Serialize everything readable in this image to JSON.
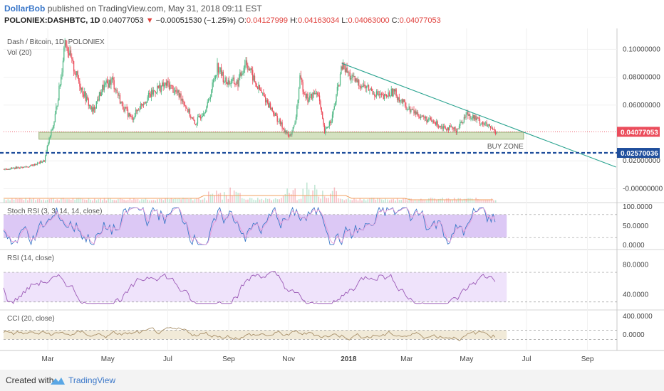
{
  "header": {
    "author": "DollarBob",
    "published_text": "published on TradingView.com, May 31, 2018 09:11 EST",
    "symbol": "POLONIEX:DASHBTC, 1D",
    "last_price": "0.04077053",
    "change_arrow": "▼",
    "change": "−0.00051530 (−1.25%)",
    "open_label": "O:",
    "open": "0.04127999",
    "high_label": "H:",
    "high": "0.04163034",
    "low_label": "L:",
    "low": "0.04063000",
    "close_label": "C:",
    "close": "0.04077053"
  },
  "colors": {
    "up": "#53b987",
    "down": "#eb4d5c",
    "trendline": "#29a38f",
    "support_line": "#1f4e9c",
    "buy_zone": "#c9d9b0",
    "rsi_band": "#efe3fb",
    "stoch_band": "#dcc8f5",
    "cci_band": "#f1ead8"
  },
  "chart_data": {
    "type": "candlestick",
    "title": "Dash / Bitcoin, 1D, POLONIEX",
    "volume_label": "Vol (20)",
    "x_ticks": [
      "Mar",
      "May",
      "Jul",
      "Sep",
      "Nov",
      "2018",
      "Mar",
      "May",
      "Jul",
      "Sep"
    ],
    "y_ticks": [
      "0.10000000",
      "0.08000000",
      "0.06000000",
      "0.02000000",
      "-0.00000000"
    ],
    "ylim": [
      -0.01,
      0.115
    ],
    "current_price_label": "0.04077053",
    "support_price_label": "0.02570036",
    "support_price": 0.0257,
    "buy_zone_label": "BUY ZONE",
    "buy_zone_range": [
      0.0355,
      0.0405
    ],
    "trendline": [
      {
        "date": "2017-12-25",
        "price": 0.09
      },
      {
        "date": "2018-09-30",
        "price": 0.0155
      }
    ],
    "price_series": [
      {
        "date": "2017-01-15",
        "price": 0.014
      },
      {
        "date": "2017-02-10",
        "price": 0.016
      },
      {
        "date": "2017-02-25",
        "price": 0.02
      },
      {
        "date": "2017-03-01",
        "price": 0.033
      },
      {
        "date": "2017-03-07",
        "price": 0.048
      },
      {
        "date": "2017-03-14",
        "price": 0.08
      },
      {
        "date": "2017-03-18",
        "price": 0.108
      },
      {
        "date": "2017-03-25",
        "price": 0.09
      },
      {
        "date": "2017-04-05",
        "price": 0.07
      },
      {
        "date": "2017-04-15",
        "price": 0.055
      },
      {
        "date": "2017-04-25",
        "price": 0.072
      },
      {
        "date": "2017-05-05",
        "price": 0.078
      },
      {
        "date": "2017-05-15",
        "price": 0.06
      },
      {
        "date": "2017-05-25",
        "price": 0.05
      },
      {
        "date": "2017-06-05",
        "price": 0.062
      },
      {
        "date": "2017-06-20",
        "price": 0.072
      },
      {
        "date": "2017-07-01",
        "price": 0.075
      },
      {
        "date": "2017-07-15",
        "price": 0.065
      },
      {
        "date": "2017-07-28",
        "price": 0.046
      },
      {
        "date": "2017-08-10",
        "price": 0.06
      },
      {
        "date": "2017-08-20",
        "price": 0.088
      },
      {
        "date": "2017-08-28",
        "price": 0.077
      },
      {
        "date": "2017-09-10",
        "price": 0.076
      },
      {
        "date": "2017-09-18",
        "price": 0.092
      },
      {
        "date": "2017-09-28",
        "price": 0.075
      },
      {
        "date": "2017-10-10",
        "price": 0.062
      },
      {
        "date": "2017-10-20",
        "price": 0.05
      },
      {
        "date": "2017-11-01",
        "price": 0.037
      },
      {
        "date": "2017-11-07",
        "price": 0.046
      },
      {
        "date": "2017-11-12",
        "price": 0.078
      },
      {
        "date": "2017-11-20",
        "price": 0.064
      },
      {
        "date": "2017-11-30",
        "price": 0.07
      },
      {
        "date": "2017-12-07",
        "price": 0.04
      },
      {
        "date": "2017-12-15",
        "price": 0.052
      },
      {
        "date": "2017-12-25",
        "price": 0.088
      },
      {
        "date": "2018-01-05",
        "price": 0.078
      },
      {
        "date": "2018-01-20",
        "price": 0.072
      },
      {
        "date": "2018-02-05",
        "price": 0.065
      },
      {
        "date": "2018-02-15",
        "price": 0.07
      },
      {
        "date": "2018-03-01",
        "price": 0.058
      },
      {
        "date": "2018-03-20",
        "price": 0.05
      },
      {
        "date": "2018-04-05",
        "price": 0.045
      },
      {
        "date": "2018-04-20",
        "price": 0.042
      },
      {
        "date": "2018-05-01",
        "price": 0.054
      },
      {
        "date": "2018-05-15",
        "price": 0.048
      },
      {
        "date": "2018-05-31",
        "price": 0.0408
      }
    ],
    "indicators": [
      {
        "name": "Stoch RSI (3, 3, 14, 14, close)",
        "ticks": [
          "100.0000",
          "50.0000",
          "0.0000"
        ],
        "ylim": [
          0,
          100
        ],
        "band": [
          20,
          80
        ]
      },
      {
        "name": "RSI (14, close)",
        "ticks": [
          "80.0000",
          "40.0000"
        ],
        "ylim": [
          25,
          95
        ],
        "band": [
          30,
          70
        ]
      },
      {
        "name": "CCI (20, close)",
        "ticks": [
          "400.0000",
          "0.0000"
        ],
        "ylim": [
          -250,
          450
        ],
        "band": [
          -100,
          100
        ]
      }
    ]
  },
  "footer": {
    "created_with": "Created with",
    "brand": "TradingView"
  }
}
